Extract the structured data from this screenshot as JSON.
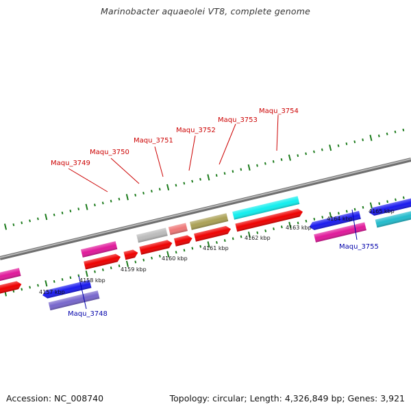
{
  "title": "Marinobacter aquaeolei VT8, complete genome",
  "footer": {
    "accession": "Accession: NC_008740",
    "summary": "Topology: circular; Length: 4,326,849 bp; Genes: 3,921"
  },
  "colors": {
    "backbone": "#8c8c8c",
    "tick": "#1a7a1a",
    "label_forward": "#cc0000",
    "label_reverse": "#0000aa"
  },
  "tick_labels": [
    "4157 kbp",
    "4158 kbp",
    "4159 kbp",
    "4160 kbp",
    "4161 kbp",
    "4162 kbp",
    "4163 kbp",
    "4164 kbp",
    "4165 kbp"
  ],
  "gene_labels": {
    "maqu_3748": "Maqu_3748",
    "maqu_3749": "Maqu_3749",
    "maqu_3750": "Maqu_3750",
    "maqu_3751": "Maqu_3751",
    "maqu_3752": "Maqu_3752",
    "maqu_3753": "Maqu_3753",
    "maqu_3754": "Maqu_3754",
    "maqu_3755": "Maqu_3755"
  }
}
